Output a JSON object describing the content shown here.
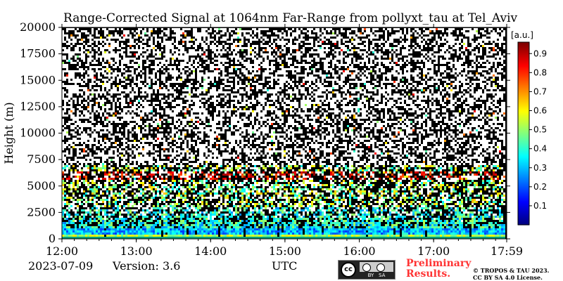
{
  "chart_data": {
    "type": "heatmap",
    "title": "Range-Corrected Signal at 1064nm Far-Range from pollyxt_tau at Tel_Aviv",
    "ylabel": "Height (m)",
    "xlabel": "UTC",
    "x_ticks": [
      "12:00",
      "13:00",
      "14:00",
      "15:00",
      "16:00",
      "17:00",
      "17:59"
    ],
    "y_ticks": [
      0,
      2500,
      5000,
      7500,
      10000,
      12500,
      15000,
      17500,
      20000
    ],
    "ylim": [
      0,
      20000
    ],
    "xlim_hours": [
      12.0,
      17.983
    ],
    "colorbar": {
      "label": "[a.u.]",
      "ticks": [
        0.1,
        0.2,
        0.3,
        0.4,
        0.5,
        0.6,
        0.7,
        0.8,
        0.9
      ],
      "range": [
        0,
        0.96
      ],
      "colormap": "jet"
    },
    "features": {
      "boundary_layer_top_m": 1000,
      "aerosol_layer_top_m": 3000,
      "residual_layer_m": 6000,
      "noise_above_m": 7000
    }
  },
  "footer": {
    "date": "2023-07-09",
    "version": "Version: 3.6",
    "time_label": "UTC",
    "preliminary": [
      "Preliminary",
      "Results."
    ],
    "copyright": [
      "© TROPOS & TAU 2023.",
      "CC BY SA 4.0 License."
    ],
    "license_badge": {
      "cc": "cc",
      "by": "BY",
      "sa": "SA"
    }
  },
  "colors": {
    "background": "#ffffff",
    "plot_background": "#000000",
    "noise": "#ffffff",
    "preliminary_text": "#ff3333"
  }
}
